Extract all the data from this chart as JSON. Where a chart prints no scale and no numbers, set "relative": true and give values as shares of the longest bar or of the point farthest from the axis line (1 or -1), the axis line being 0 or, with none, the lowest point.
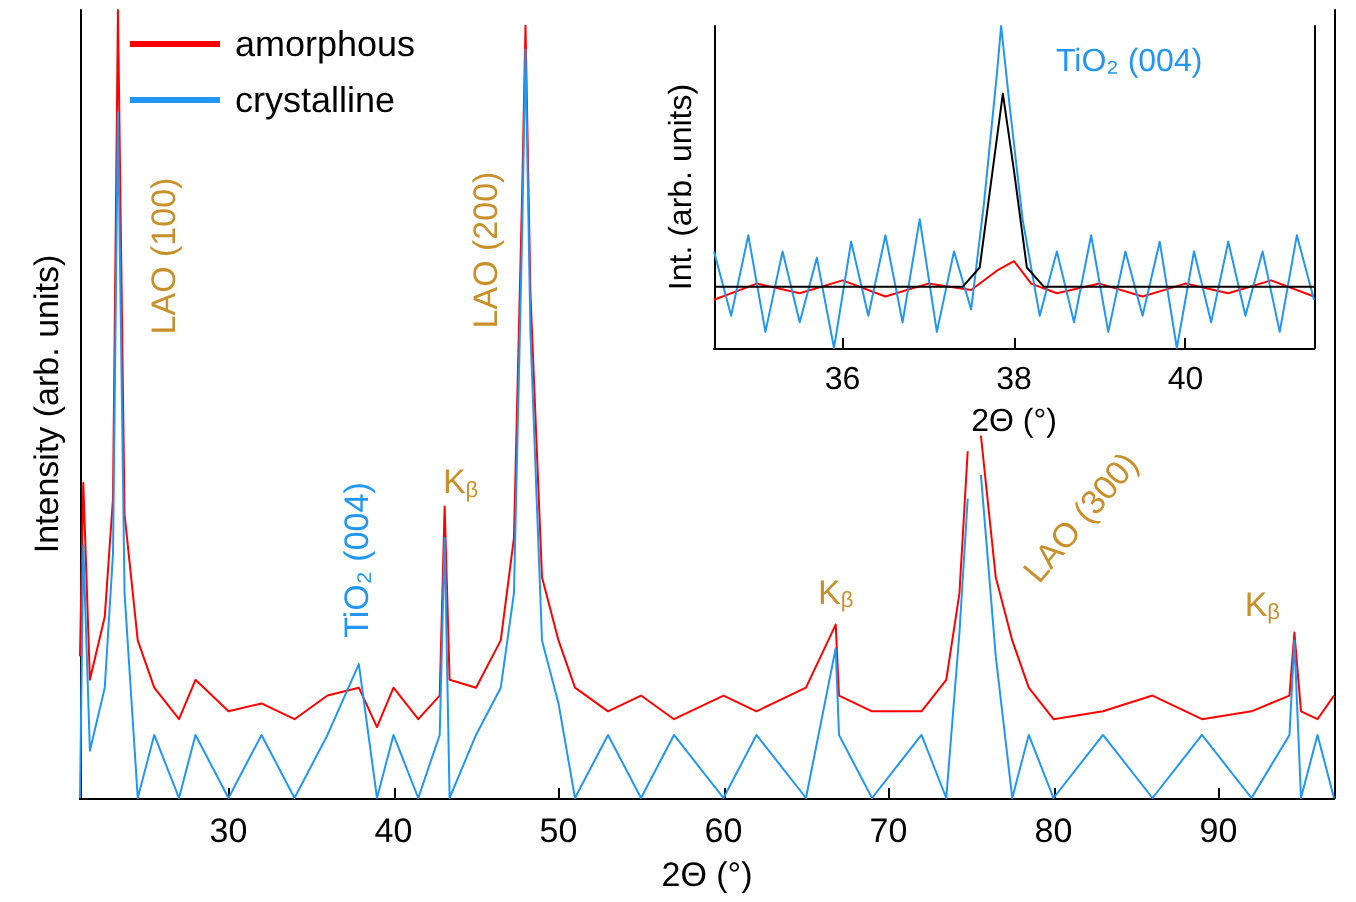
{
  "chart_data": [
    {
      "type": "line",
      "xlabel": "2Θ (°)",
      "ylabel": "Intensity (arb. units)",
      "xlim": [
        21,
        97
      ],
      "xticks": [
        30,
        40,
        50,
        60,
        70,
        80,
        90
      ],
      "relative": true,
      "legend": "top left",
      "marker": "none",
      "x": [
        21.0,
        21.2,
        21.6,
        22.5,
        23.0,
        23.3,
        23.7,
        24.5,
        25.5,
        27,
        28,
        30,
        32,
        34,
        36,
        37.9,
        39,
        40,
        41.5,
        42.8,
        43.1,
        43.4,
        45,
        46.5,
        47.3,
        47.8,
        48.0,
        48.3,
        49,
        50,
        51,
        53,
        55,
        57,
        60,
        62,
        65,
        66.8,
        67,
        69,
        72,
        73.5,
        74.3,
        74.8,
        75.2,
        75.6,
        76.5,
        77.5,
        78.5,
        80,
        83,
        86,
        89,
        92,
        94.3,
        94.6,
        95,
        96,
        97
      ],
      "series": [
        {
          "name": "amorphous",
          "color": "#ff0000",
          "values": [
            0.18,
            0.4,
            0.15,
            0.23,
            0.38,
            1,
            0.36,
            0.2,
            0.14,
            0.1,
            0.15,
            0.11,
            0.12,
            0.1,
            0.13,
            0.14,
            0.09,
            0.14,
            0.1,
            0.13,
            0.37,
            0.15,
            0.14,
            0.2,
            0.33,
            0.77,
            0.98,
            0.64,
            0.28,
            0.2,
            0.14,
            0.11,
            0.13,
            0.1,
            0.13,
            0.11,
            0.14,
            0.22,
            0.13,
            0.11,
            0.11,
            0.15,
            0.26,
            0.44,
            null,
            0.46,
            0.28,
            0.2,
            0.14,
            0.1,
            0.11,
            0.13,
            0.1,
            0.11,
            0.13,
            0.21,
            0.11,
            0.1,
            0.13
          ]
        },
        {
          "name": "crystalline",
          "color": "#2196f3",
          "values": [
            0,
            0.32,
            0.06,
            0.14,
            0.31,
            0.87,
            0.26,
            0,
            0.08,
            0,
            0.08,
            0,
            0.08,
            0,
            0.08,
            0.17,
            0,
            0.08,
            0,
            0.08,
            0.33,
            0,
            0.08,
            0.14,
            0.26,
            0.72,
            0.95,
            0.59,
            0.2,
            0.12,
            0,
            0.08,
            0,
            0.08,
            0,
            0.08,
            0,
            0.19,
            0.08,
            0,
            0.08,
            0,
            0.21,
            0.38,
            null,
            0.41,
            0.18,
            0,
            0.08,
            0,
            0.08,
            0,
            0.08,
            0,
            0.08,
            0.2,
            0,
            0.08,
            0
          ]
        }
      ],
      "annotations": [
        "LAO (100)",
        "LAO (200)",
        {
          "text": "TiO₂ (004)",
          "x": 37.9,
          "y": 0.17
        },
        {
          "text": "K$_{β}$",
          "x": 43.1,
          "y": 0.37
        },
        {
          "text": "K$_{β}$",
          "x": 66.8,
          "y": 0.22
        },
        {
          "text": "K$_{β}$",
          "x": 94.6,
          "y": 0.21
        },
        {
          "text": "LAO (300)",
          "x": 75.6,
          "y": 0.46
        }
      ]
    },
    {
      "type": "line",
      "xlabel": "2Θ (°)",
      "ylabel": "Int. (arb. units)",
      "xlim": [
        34.5,
        41.5
      ],
      "xticks": [
        36,
        38,
        40
      ],
      "relative": true,
      "marker": "none",
      "series": [
        {
          "color": "#ff0000",
          "x": [
            34.5,
            35,
            35.5,
            36,
            36.5,
            37,
            37.5,
            37.8,
            38,
            38.2,
            38.5,
            39,
            39.5,
            40,
            40.5,
            41,
            41.5
          ],
          "values": [
            0.15,
            0.2,
            0.17,
            0.21,
            0.16,
            0.2,
            0.18,
            0.24,
            0.27,
            0.2,
            0.17,
            0.2,
            0.16,
            0.2,
            0.17,
            0.21,
            0.16
          ]
        },
        {
          "color": "#2196f3",
          "x": [
            34.5,
            34.7,
            34.9,
            35.1,
            35.3,
            35.5,
            35.7,
            35.9,
            36.1,
            36.3,
            36.5,
            36.7,
            36.9,
            37.1,
            37.3,
            37.5,
            37.65,
            37.8,
            37.85,
            37.95,
            38.1,
            38.3,
            38.5,
            38.7,
            38.9,
            39.1,
            39.3,
            39.5,
            39.7,
            39.9,
            40.1,
            40.3,
            40.5,
            40.7,
            40.9,
            41.1,
            41.3,
            41.5
          ],
          "values": [
            0.3,
            0.1,
            0.35,
            0.05,
            0.3,
            0.08,
            0.28,
            0,
            0.33,
            0.1,
            0.35,
            0.08,
            0.4,
            0.05,
            0.3,
            0.12,
            0.45,
            0.85,
            1,
            0.75,
            0.4,
            0.1,
            0.3,
            0.08,
            0.35,
            0.05,
            0.3,
            0.1,
            0.33,
            0,
            0.3,
            0.08,
            0.33,
            0.1,
            0.3,
            0.05,
            0.35,
            0.15
          ]
        },
        {
          "color": "#000000",
          "x": [
            34.5,
            37.4,
            37.6,
            37.75,
            37.87,
            38.0,
            38.15,
            38.35,
            41.5
          ],
          "values": [
            0.19,
            0.19,
            0.25,
            0.55,
            0.79,
            0.55,
            0.25,
            0.19,
            0.19
          ]
        }
      ],
      "annotations": [
        {
          "text": "TiO₂ (004)",
          "x": 37.85,
          "y": 1
        }
      ]
    }
  ]
}
